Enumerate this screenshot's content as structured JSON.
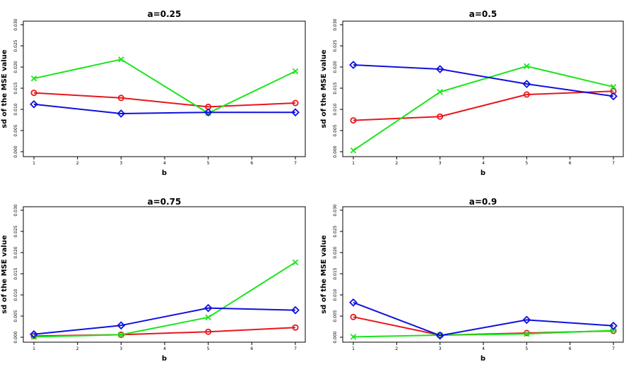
{
  "colors": {
    "red": "#e8161c",
    "green": "#18e618",
    "blue": "#1010dd"
  },
  "chart_data": [
    {
      "type": "line",
      "title": "a=0.25",
      "xlabel": "b",
      "ylabel": "sd of the MSE value",
      "x_ticks": [
        "1",
        "2",
        "3",
        "4",
        "5",
        "6",
        "7"
      ],
      "y_ticks": [
        "0.000",
        "0.005",
        "0.010",
        "0.015",
        "0.020",
        "0.025",
        "0.030"
      ],
      "xlim": [
        1,
        7
      ],
      "ylim": [
        0,
        0.03
      ],
      "x": [
        1,
        3,
        5,
        7
      ],
      "series": [
        {
          "name": "red",
          "color": "#e8161c",
          "marker": "circle",
          "values": [
            0.0139,
            0.0127,
            0.0106,
            0.0115
          ]
        },
        {
          "name": "green",
          "color": "#18e618",
          "marker": "x",
          "values": [
            0.0173,
            0.0218,
            0.0091,
            0.019
          ]
        },
        {
          "name": "blue",
          "color": "#1010dd",
          "marker": "diamond",
          "values": [
            0.0112,
            0.009,
            0.0093,
            0.0093
          ]
        }
      ]
    },
    {
      "type": "line",
      "title": "a=0.5",
      "xlabel": "b",
      "ylabel": "sd of the MSE value",
      "x_ticks": [
        "1",
        "2",
        "3",
        "4",
        "5",
        "6",
        "7"
      ],
      "y_ticks": [
        "0.000",
        "0.005",
        "0.010",
        "0.015",
        "0.020",
        "0.025",
        "0.030"
      ],
      "xlim": [
        1,
        7
      ],
      "ylim": [
        0,
        0.03
      ],
      "x": [
        1,
        3,
        5,
        7
      ],
      "series": [
        {
          "name": "red",
          "color": "#e8161c",
          "marker": "circle",
          "values": [
            0.0074,
            0.0083,
            0.0135,
            0.0143
          ]
        },
        {
          "name": "green",
          "color": "#18e618",
          "marker": "x",
          "values": [
            0.0003,
            0.0141,
            0.0202,
            0.0153
          ]
        },
        {
          "name": "blue",
          "color": "#1010dd",
          "marker": "diamond",
          "values": [
            0.0205,
            0.0195,
            0.016,
            0.0131
          ]
        }
      ]
    },
    {
      "type": "line",
      "title": "a=0.75",
      "xlabel": "b",
      "ylabel": "sd of the MSE value",
      "x_ticks": [
        "1",
        "2",
        "3",
        "4",
        "5",
        "6",
        "7"
      ],
      "y_ticks": [
        "0.000",
        "0.005",
        "0.010",
        "0.015",
        "0.020",
        "0.025",
        "0.030"
      ],
      "xlim": [
        1,
        7
      ],
      "ylim": [
        0,
        0.03
      ],
      "x": [
        1,
        3,
        5,
        7
      ],
      "series": [
        {
          "name": "red",
          "color": "#e8161c",
          "marker": "circle",
          "values": [
            0.0003,
            0.0006,
            0.0013,
            0.0023
          ]
        },
        {
          "name": "green",
          "color": "#18e618",
          "marker": "x",
          "values": [
            0.0001,
            0.0006,
            0.0047,
            0.0177
          ]
        },
        {
          "name": "blue",
          "color": "#1010dd",
          "marker": "diamond",
          "values": [
            0.0007,
            0.0028,
            0.0069,
            0.0064
          ]
        }
      ]
    },
    {
      "type": "line",
      "title": "a=0.9",
      "xlabel": "b",
      "ylabel": "sd of the MSE value",
      "x_ticks": [
        "1",
        "2",
        "3",
        "4",
        "5",
        "6",
        "7"
      ],
      "y_ticks": [
        "0.000",
        "0.005",
        "0.010",
        "0.015",
        "0.020",
        "0.025",
        "0.030"
      ],
      "xlim": [
        1,
        7
      ],
      "ylim": [
        0,
        0.03
      ],
      "x": [
        1,
        3,
        5,
        7
      ],
      "series": [
        {
          "name": "red",
          "color": "#e8161c",
          "marker": "circle",
          "values": [
            0.0048,
            0.0005,
            0.001,
            0.0015
          ]
        },
        {
          "name": "green",
          "color": "#18e618",
          "marker": "x",
          "values": [
            0.0001,
            0.0005,
            0.0008,
            0.0016
          ]
        },
        {
          "name": "blue",
          "color": "#1010dd",
          "marker": "diamond",
          "values": [
            0.0082,
            0.0004,
            0.0041,
            0.0027
          ]
        }
      ]
    }
  ]
}
